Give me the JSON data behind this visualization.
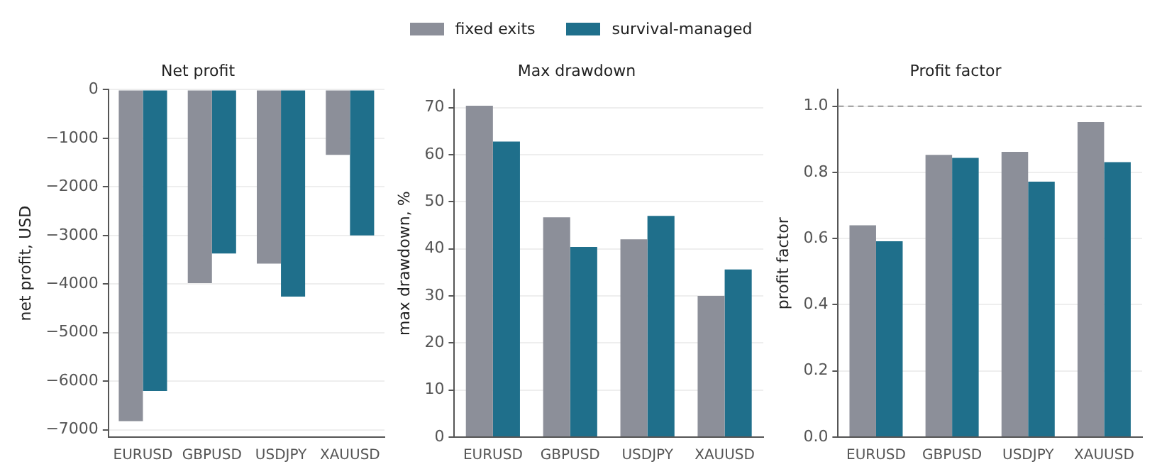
{
  "chart_data": [
    {
      "type": "bar",
      "title": "Net profit",
      "ylabel": "net profit, USD",
      "categories": [
        "EURUSD",
        "GBPUSD",
        "USDJPY",
        "XAUUSD"
      ],
      "series": [
        {
          "name": "fixed exits",
          "color": "#8c8f99",
          "values": [
            -6820,
            -3980,
            -3580,
            -1340
          ]
        },
        {
          "name": "survival-managed",
          "color": "#1f6f8b",
          "values": [
            -6200,
            -3370,
            -4260,
            -3000
          ]
        }
      ],
      "ylim": [
        -7150,
        0
      ],
      "yticks": [
        {
          "value": -7000,
          "label": "−7000"
        },
        {
          "value": -6000,
          "label": "−6000"
        },
        {
          "value": -5000,
          "label": "−5000"
        },
        {
          "value": -4000,
          "label": "−4000"
        },
        {
          "value": -3000,
          "label": "−3000"
        },
        {
          "value": -2000,
          "label": "−2000"
        },
        {
          "value": -1000,
          "label": "−1000"
        },
        0
      ],
      "grid": "y",
      "legend": "top"
    },
    {
      "type": "bar",
      "title": "Max drawdown",
      "ylabel": "max drawdown, %",
      "categories": [
        "EURUSD",
        "GBPUSD",
        "USDJPY",
        "XAUUSD"
      ],
      "series": [
        {
          "color": "#8c8f99",
          "values": [
            70.4,
            46.7,
            42.0,
            30.0
          ]
        },
        {
          "color": "#1f6f8b",
          "values": [
            62.8,
            40.4,
            47.0,
            35.6
          ]
        }
      ],
      "ylim": [
        0,
        73.8
      ],
      "yticks": [
        0,
        10,
        20,
        30,
        40,
        50,
        60,
        70
      ],
      "grid": "y"
    },
    {
      "type": "bar",
      "title": "Profit factor",
      "ylabel": "profit factor",
      "categories": [
        "EURUSD",
        "GBPUSD",
        "USDJPY",
        "XAUUSD"
      ],
      "series": [
        {
          "color": "#8c8f99",
          "values": [
            0.64,
            0.853,
            0.862,
            0.952
          ]
        },
        {
          "color": "#1f6f8b",
          "values": [
            0.592,
            0.844,
            0.772,
            0.831
          ]
        }
      ],
      "ylim": [
        0,
        1.05
      ],
      "yticks": [
        {
          "value": 0,
          "label": "0.0"
        },
        0.2,
        0.4,
        0.6,
        0.8,
        {
          "value": 1,
          "label": "1.0"
        }
      ],
      "grid": "y",
      "ref_lines": [
        {
          "axis": "y",
          "value": 1,
          "color": "#999999",
          "line_style": "dashed"
        }
      ]
    }
  ]
}
